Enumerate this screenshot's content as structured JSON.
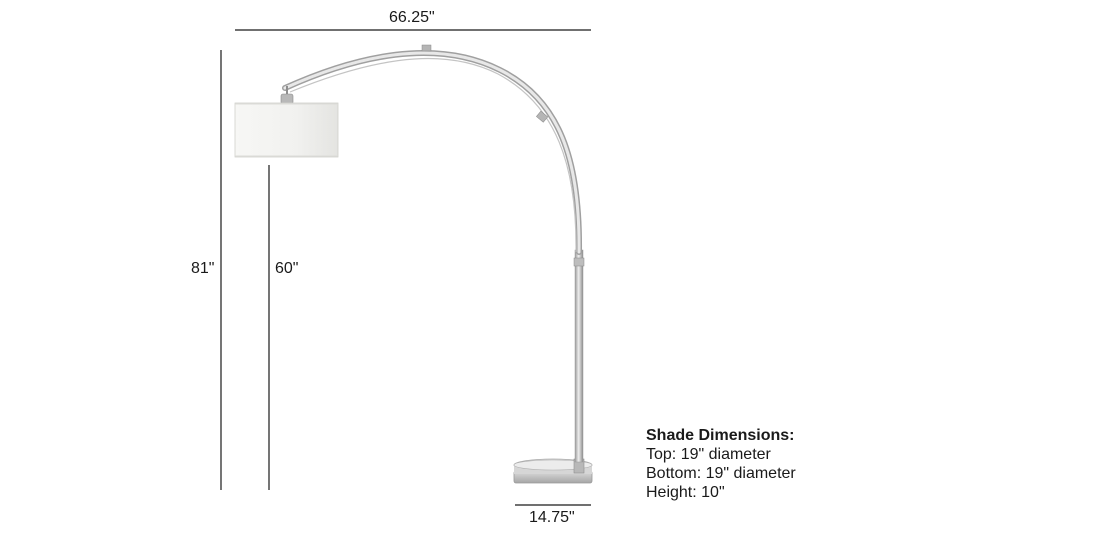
{
  "dimensions": {
    "overall_width": "66.25\"",
    "overall_height": "81\"",
    "shade_clearance": "60\"",
    "base_diameter": "14.75\""
  },
  "shade_info": {
    "title": "Shade Dimensions:",
    "lines": [
      "Top: 19\" diameter",
      "Bottom: 19\" diameter",
      "Height: 10\""
    ]
  },
  "colors": {
    "line": "#1a1a1a",
    "metal_light": "#e6e6e6",
    "metal_dark": "#8e8e8e",
    "shade_fill": "#f4f4f2",
    "shade_edge": "#cfcfcc"
  }
}
